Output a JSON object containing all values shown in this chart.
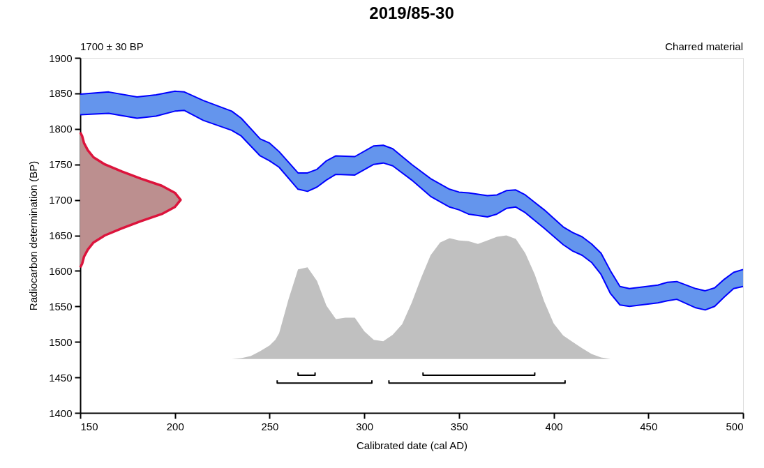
{
  "chart_data": {
    "type": "area",
    "title": "2019/85-30",
    "xlabel": "Calibrated date (cal AD)",
    "ylabel": "Radiocarbon determination (BP)",
    "annotations": [
      "1700 ± 30 BP",
      "Charred material"
    ],
    "xlim": [
      150,
      500
    ],
    "xticks": [
      150,
      200,
      250,
      300,
      350,
      400,
      450,
      500
    ],
    "ylim": [
      1400,
      1900
    ],
    "yticks": [
      1400,
      1450,
      1500,
      1550,
      1600,
      1650,
      1700,
      1750,
      1800,
      1850,
      1900
    ],
    "series": [
      {
        "color": "#c0c0c0",
        "x": [
          150,
          230,
          235,
          240,
          245,
          250,
          253,
          255,
          260,
          265,
          270,
          275,
          280,
          285,
          290,
          295,
          300,
          305,
          310,
          315,
          320,
          325,
          330,
          335,
          340,
          345,
          350,
          355,
          360,
          365,
          370,
          375,
          380,
          385,
          390,
          395,
          400,
          405,
          410,
          415,
          420,
          425,
          430,
          500
        ],
        "values": [
          1476,
          1476,
          1477,
          1480,
          1487,
          1495,
          1503,
          1512,
          1560,
          1602,
          1605,
          1586,
          1551,
          1532,
          1534,
          1534,
          1515,
          1503,
          1501,
          1510,
          1525,
          1555,
          1590,
          1622,
          1640,
          1646,
          1643,
          1642,
          1638,
          1643,
          1648,
          1650,
          1645,
          1625,
          1595,
          1557,
          1526,
          1509,
          1500,
          1491,
          1483,
          1478,
          1476,
          1476
        ]
      },
      {
        "type": "line",
        "color": "#0000ff",
        "x": [
          150,
          165,
          180,
          190,
          200,
          205,
          215,
          230,
          235,
          245,
          250,
          255,
          265,
          270,
          275,
          280,
          285,
          295,
          305,
          310,
          315,
          325,
          335,
          345,
          350,
          355,
          365,
          370,
          375,
          380,
          385,
          395,
          405,
          410,
          415,
          420,
          425,
          430,
          435,
          440,
          455,
          460,
          465,
          475,
          480,
          485,
          490,
          495,
          500
        ],
        "values": [
          1820,
          1822,
          1815,
          1818,
          1825,
          1826,
          1812,
          1798,
          1790,
          1762,
          1755,
          1746,
          1715,
          1712,
          1718,
          1728,
          1736,
          1735,
          1750,
          1752,
          1748,
          1728,
          1705,
          1690,
          1686,
          1680,
          1676,
          1680,
          1688,
          1690,
          1682,
          1660,
          1637,
          1628,
          1622,
          1612,
          1595,
          1568,
          1552,
          1550,
          1555,
          1558,
          1560,
          1548,
          1545,
          1550,
          1563,
          1575,
          1578
        ],
        "upper": [
          1849,
          1852,
          1845,
          1848,
          1853,
          1852,
          1840,
          1825,
          1815,
          1786,
          1780,
          1768,
          1738,
          1738,
          1743,
          1755,
          1762,
          1761,
          1776,
          1777,
          1772,
          1750,
          1730,
          1715,
          1711,
          1710,
          1706,
          1707,
          1713,
          1714,
          1707,
          1686,
          1662,
          1654,
          1648,
          1638,
          1625,
          1600,
          1578,
          1575,
          1580,
          1584,
          1585,
          1575,
          1572,
          1576,
          1588,
          1598,
          1602
        ],
        "lower": [
          1820,
          1822,
          1815,
          1818,
          1825,
          1826,
          1812,
          1798,
          1790,
          1762,
          1755,
          1746,
          1715,
          1712,
          1718,
          1728,
          1736,
          1735,
          1750,
          1752,
          1748,
          1728,
          1705,
          1690,
          1686,
          1680,
          1676,
          1680,
          1688,
          1690,
          1682,
          1660,
          1637,
          1628,
          1622,
          1612,
          1595,
          1568,
          1552,
          1550,
          1555,
          1558,
          1560,
          1548,
          1545,
          1550,
          1563,
          1575,
          1578
        ]
      },
      {
        "color": "#dc143c",
        "x": [
          150,
          151,
          152,
          154,
          157,
          163,
          172,
          182,
          193,
          200,
          203,
          200,
          193,
          182,
          172,
          163,
          157,
          154,
          152,
          151,
          150
        ],
        "values": [
          1795,
          1790,
          1780,
          1770,
          1760,
          1750,
          1740,
          1730,
          1720,
          1710,
          1700,
          1690,
          1680,
          1670,
          1660,
          1650,
          1640,
          1630,
          1620,
          1610,
          1605
        ]
      },
      {
        "type": "line",
        "color": "#0000ff",
        "x": [
          150,
          165,
          180,
          190,
          200,
          205,
          215,
          230,
          235,
          245,
          250,
          255,
          265,
          270,
          275,
          280,
          285,
          295,
          305,
          310,
          315,
          325,
          335,
          345,
          350,
          355,
          365,
          370,
          375,
          380,
          385,
          395,
          405,
          410,
          415,
          420,
          425,
          430,
          435,
          440,
          455,
          460,
          465,
          475,
          480,
          485,
          490,
          495,
          500
        ],
        "values": [
          1849,
          1852,
          1845,
          1848,
          1853,
          1852,
          1840,
          1825,
          1815,
          1786,
          1780,
          1768,
          1738,
          1738,
          1743,
          1755,
          1762,
          1761,
          1776,
          1777,
          1772,
          1750,
          1730,
          1715,
          1711,
          1710,
          1706,
          1707,
          1713,
          1714,
          1707,
          1686,
          1662,
          1654,
          1648,
          1638,
          1625,
          1600,
          1578,
          1575,
          1580,
          1584,
          1585,
          1575,
          1572,
          1576,
          1588,
          1598,
          1602
        ]
      },
      {
        "type": "line",
        "color": "#000000",
        "x": [
          265,
          265,
          274,
          274
        ],
        "values": [
          1457,
          1453,
          1453,
          1457
        ]
      },
      {
        "type": "line",
        "color": "#000000",
        "x": [
          331,
          331,
          390,
          390
        ],
        "values": [
          1457,
          1453,
          1453,
          1457
        ]
      },
      {
        "type": "line",
        "color": "#000000",
        "x": [
          254,
          254,
          304,
          304
        ],
        "values": [
          1446,
          1442,
          1442,
          1446
        ]
      },
      {
        "type": "line",
        "color": "#000000",
        "x": [
          313,
          313,
          406,
          406
        ],
        "values": [
          1446,
          1442,
          1442,
          1446
        ]
      }
    ]
  }
}
